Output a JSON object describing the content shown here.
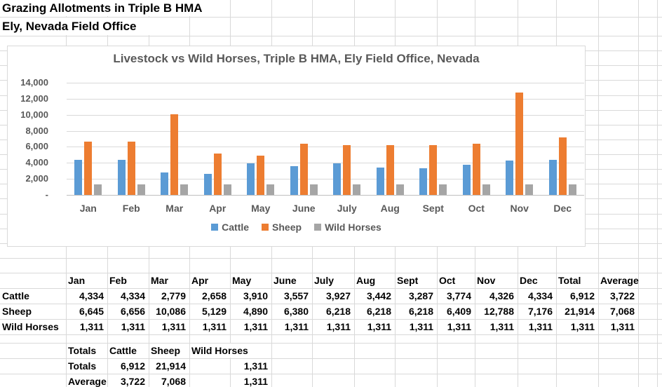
{
  "page": {
    "title_line1": "Grazing Allotments in Triple B HMA",
    "title_line2": "Ely, Nevada Field Office"
  },
  "chart_data": {
    "type": "bar",
    "title": "Livestock vs Wild Horses, Triple B HMA, Ely Field Office, Nevada",
    "categories": [
      "Jan",
      "Feb",
      "Mar",
      "Apr",
      "May",
      "June",
      "July",
      "Aug",
      "Sept",
      "Oct",
      "Nov",
      "Dec"
    ],
    "series": [
      {
        "name": "Cattle",
        "color": "#5B9BD5",
        "values": [
          4334,
          4334,
          2779,
          2658,
          3910,
          3557,
          3927,
          3442,
          3287,
          3774,
          4326,
          4334
        ]
      },
      {
        "name": "Sheep",
        "color": "#ED7D31",
        "values": [
          6645,
          6656,
          10086,
          5129,
          4890,
          6380,
          6218,
          6218,
          6218,
          6409,
          12788,
          7176
        ]
      },
      {
        "name": "Wild Horses",
        "color": "#A5A5A5",
        "values": [
          1311,
          1311,
          1311,
          1311,
          1311,
          1311,
          1311,
          1311,
          1311,
          1311,
          1311,
          1311
        ]
      }
    ],
    "ylim": [
      0,
      14000
    ],
    "ytick_step": 2000,
    "ytick_labels": [
      "-",
      "2,000",
      "4,000",
      "6,000",
      "8,000",
      "10,000",
      "12,000",
      "14,000"
    ],
    "grid": true,
    "legend_position": "bottom"
  },
  "table": {
    "headers": [
      "",
      "Jan",
      "Feb",
      "Mar",
      "Apr",
      "May",
      "June",
      "July",
      "Aug",
      "Sept",
      "Oct",
      "Nov",
      "Dec",
      "Total",
      "Average"
    ],
    "rows": [
      {
        "label": "Cattle",
        "values": [
          "4,334",
          "4,334",
          "2,779",
          "2,658",
          "3,910",
          "3,557",
          "3,927",
          "3,442",
          "3,287",
          "3,774",
          "4,326",
          "4,334",
          "6,912",
          "3,722"
        ]
      },
      {
        "label": "Sheep",
        "values": [
          "6,645",
          "6,656",
          "10,086",
          "5,129",
          "4,890",
          "6,380",
          "6,218",
          "6,218",
          "6,218",
          "6,409",
          "12,788",
          "7,176",
          "21,914",
          "7,068"
        ]
      },
      {
        "label": "Wild Horses",
        "values": [
          "1,311",
          "1,311",
          "1,311",
          "1,311",
          "1,311",
          "1,311",
          "1,311",
          "1,311",
          "1,311",
          "1,311",
          "1,311",
          "1,311",
          "1,311",
          "1,311"
        ]
      }
    ]
  },
  "summary": {
    "headers": [
      "Totals",
      "Cattle",
      "Sheep",
      "Wild Horses"
    ],
    "rows": [
      {
        "label": "Totals",
        "values": [
          "6,912",
          "21,914",
          "1,311"
        ]
      },
      {
        "label": "Average",
        "values": [
          "3,722",
          "7,068",
          "1,311"
        ]
      }
    ]
  }
}
